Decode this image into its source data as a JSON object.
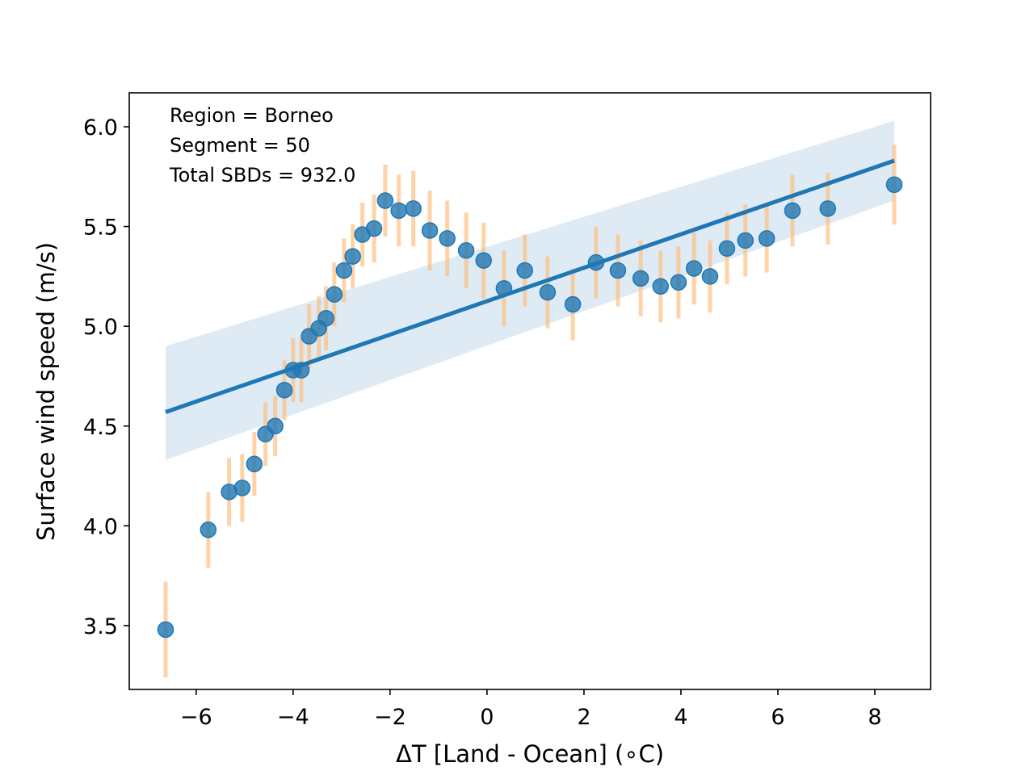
{
  "chart_data": {
    "type": "scatter",
    "title": "",
    "xlabel": "ΔT [Land - Ocean] (∘C)",
    "ylabel": "Surface wind speed (m/s)",
    "xlim": [
      -7.38,
      9.15
    ],
    "ylim": [
      3.18,
      6.17
    ],
    "xticks": [
      -6,
      -4,
      -2,
      0,
      2,
      4,
      6,
      8
    ],
    "xtick_labels": [
      "−6",
      "−4",
      "−2",
      "0",
      "2",
      "4",
      "6",
      "8"
    ],
    "yticks": [
      3.5,
      4.0,
      4.5,
      5.0,
      5.5,
      6.0
    ],
    "ytick_labels": [
      "3.5",
      "4.0",
      "4.5",
      "5.0",
      "5.5",
      "6.0"
    ],
    "grid": false,
    "annotations": [
      "Region = Borneo",
      "Segment = 50",
      "Total SBDs = 932.0"
    ],
    "colors": {
      "points": "#1f77b4",
      "errorbars": "#ffbb78",
      "line": "#1f77b4",
      "ci_band": "#1f77b4"
    },
    "points": {
      "x": [
        -6.63,
        -5.75,
        -5.32,
        -5.05,
        -4.8,
        -4.57,
        -4.37,
        -4.18,
        -4.0,
        -3.83,
        -3.67,
        -3.47,
        -3.32,
        -3.15,
        -2.95,
        -2.77,
        -2.57,
        -2.33,
        -2.1,
        -1.82,
        -1.52,
        -1.18,
        -0.82,
        -0.43,
        -0.07,
        0.35,
        0.78,
        1.25,
        1.77,
        2.25,
        2.7,
        3.17,
        3.58,
        3.95,
        4.27,
        4.6,
        4.95,
        5.33,
        5.77,
        6.3,
        7.03,
        8.4
      ],
      "y": [
        3.48,
        3.98,
        4.17,
        4.19,
        4.31,
        4.46,
        4.5,
        4.68,
        4.78,
        4.78,
        4.95,
        4.99,
        5.04,
        5.16,
        5.28,
        5.35,
        5.46,
        5.49,
        5.63,
        5.58,
        5.59,
        5.48,
        5.44,
        5.38,
        5.33,
        5.19,
        5.28,
        5.17,
        5.11,
        5.32,
        5.28,
        5.24,
        5.2,
        5.22,
        5.29,
        5.25,
        5.39,
        5.43,
        5.44,
        5.58,
        5.59,
        5.71
      ],
      "err": [
        0.24,
        0.19,
        0.17,
        0.17,
        0.16,
        0.16,
        0.15,
        0.15,
        0.16,
        0.16,
        0.16,
        0.16,
        0.16,
        0.16,
        0.16,
        0.16,
        0.16,
        0.17,
        0.18,
        0.18,
        0.19,
        0.2,
        0.19,
        0.19,
        0.19,
        0.19,
        0.18,
        0.18,
        0.18,
        0.18,
        0.18,
        0.19,
        0.18,
        0.18,
        0.18,
        0.18,
        0.18,
        0.18,
        0.17,
        0.18,
        0.18,
        0.2
      ]
    },
    "regression": {
      "x": [
        -6.63,
        8.4
      ],
      "y": [
        4.57,
        5.83
      ],
      "ci_lower": [
        4.33,
        5.63
      ],
      "ci_upper": [
        4.9,
        6.03
      ]
    }
  }
}
